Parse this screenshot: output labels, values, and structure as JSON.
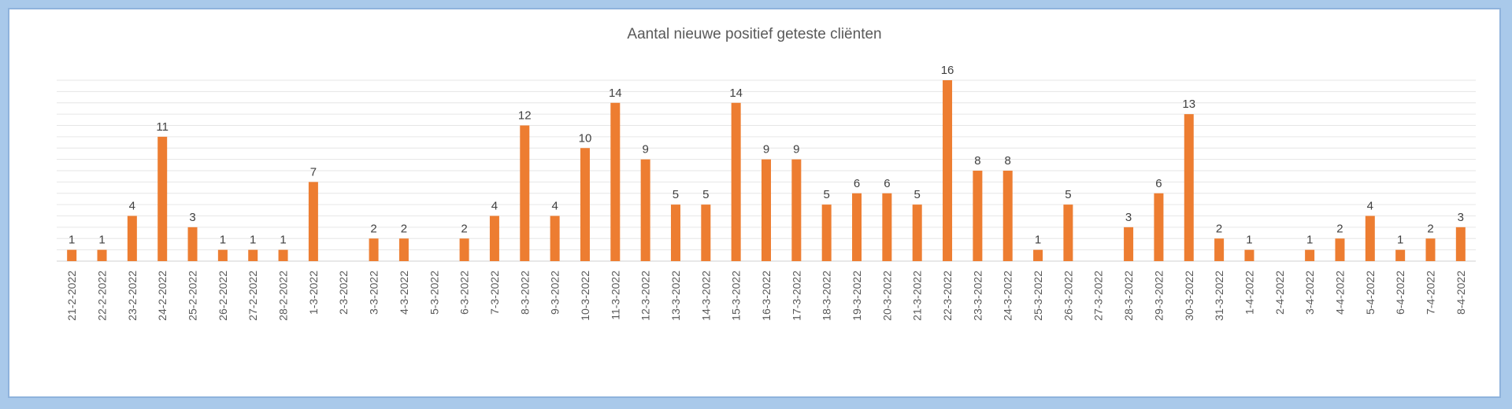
{
  "chart_data": {
    "type": "bar",
    "title": "Aantal nieuwe positief geteste cliënten",
    "xlabel": "",
    "ylabel": "",
    "ylim": [
      0,
      16
    ],
    "grid": true,
    "data_labels": true,
    "colors": {
      "bar": "#ed7d31",
      "grid": "#e6e6e6",
      "axis": "#d0d0d0"
    },
    "categories": [
      "21-2-2022",
      "22-2-2022",
      "23-2-2022",
      "24-2-2022",
      "25-2-2022",
      "26-2-2022",
      "27-2-2022",
      "28-2-2022",
      "1-3-2022",
      "2-3-2022",
      "3-3-2022",
      "4-3-2022",
      "5-3-2022",
      "6-3-2022",
      "7-3-2022",
      "8-3-2022",
      "9-3-2022",
      "10-3-2022",
      "11-3-2022",
      "12-3-2022",
      "13-3-2022",
      "14-3-2022",
      "15-3-2022",
      "16-3-2022",
      "17-3-2022",
      "18-3-2022",
      "19-3-2022",
      "20-3-2022",
      "21-3-2022",
      "22-3-2022",
      "23-3-2022",
      "24-3-2022",
      "25-3-2022",
      "26-3-2022",
      "27-3-2022",
      "28-3-2022",
      "29-3-2022",
      "30-3-2022",
      "31-3-2022",
      "1-4-2022",
      "2-4-2022",
      "3-4-2022",
      "4-4-2022",
      "5-4-2022",
      "6-4-2022",
      "7-4-2022",
      "8-4-2022"
    ],
    "values": [
      1,
      1,
      4,
      11,
      3,
      1,
      1,
      1,
      7,
      null,
      2,
      2,
      null,
      2,
      4,
      12,
      4,
      10,
      14,
      9,
      5,
      5,
      14,
      9,
      9,
      5,
      6,
      6,
      5,
      16,
      8,
      8,
      1,
      5,
      null,
      3,
      6,
      13,
      2,
      1,
      null,
      1,
      2,
      4,
      1,
      2,
      3
    ]
  }
}
